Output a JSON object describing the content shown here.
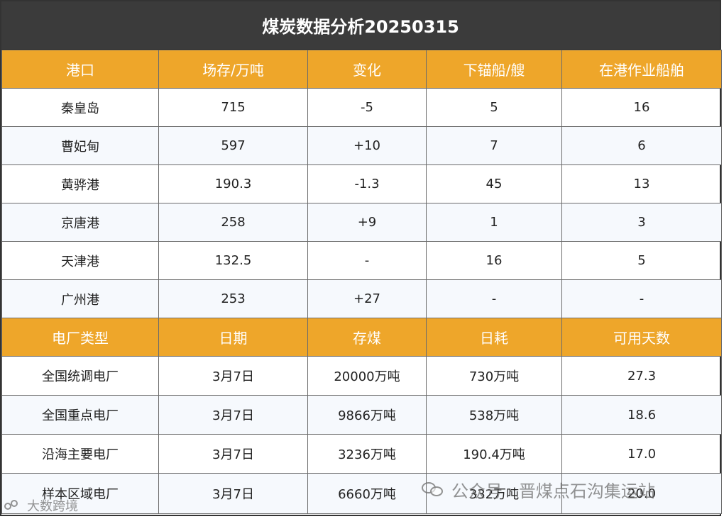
{
  "title": "煤炭数据分析20250315",
  "ports": {
    "headers": [
      "港口",
      "场存/万吨",
      "变化",
      "下锚船/艘",
      "在港作业船舶"
    ],
    "rows": [
      [
        "秦皇岛",
        "715",
        "-5",
        "5",
        "16"
      ],
      [
        "曹妃甸",
        "597",
        "+10",
        "7",
        "6"
      ],
      [
        "黄骅港",
        "190.3",
        "-1.3",
        "45",
        "13"
      ],
      [
        "京唐港",
        "258",
        "+9",
        "1",
        "3"
      ],
      [
        "天津港",
        "132.5",
        "-",
        "16",
        "5"
      ],
      [
        "广州港",
        "253",
        "+27",
        "-",
        "-"
      ]
    ]
  },
  "plants": {
    "headers": [
      "电厂类型",
      "日期",
      "存煤",
      "日耗",
      "可用天数"
    ],
    "rows": [
      [
        "全国统调电厂",
        "3月7日",
        "20000万吨",
        "730万吨",
        "27.3"
      ],
      [
        "全国重点电厂",
        "3月7日",
        "9866万吨",
        "538万吨",
        "18.6"
      ],
      [
        "沿海主要电厂",
        "3月7日",
        "3236万吨",
        "190.4万吨",
        "17.0"
      ],
      [
        "样本区域电厂",
        "3月7日",
        "6660万吨",
        "332万吨",
        "20.0"
      ]
    ]
  },
  "watermarks": {
    "right": "公众号 · 晋煤点石沟集运站",
    "left": "大数跨境"
  },
  "colors": {
    "header_bg": "#eea62a",
    "title_bg": "#3b3b3b"
  }
}
